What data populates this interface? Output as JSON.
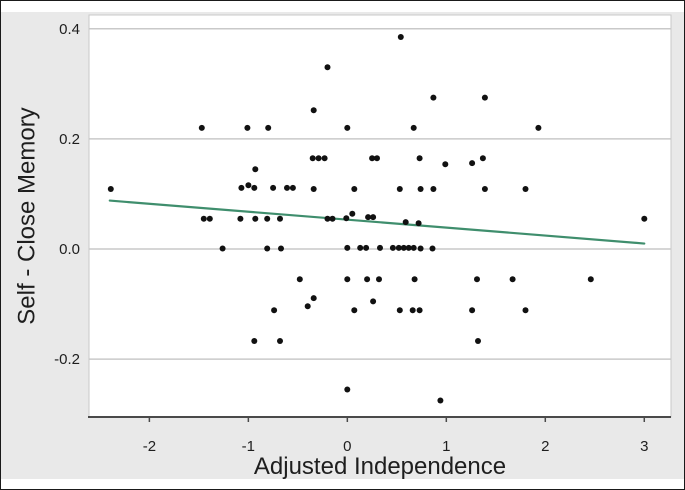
{
  "chart_data": {
    "type": "scatter",
    "title": "",
    "xlabel": "Adjusted Independence",
    "ylabel": "Self - Close Memory",
    "xlim": [
      -2.61,
      3.27
    ],
    "ylim": [
      -0.305,
      0.425
    ],
    "xticks": [
      -2,
      -1,
      0,
      1,
      2,
      3
    ],
    "xtick_labels": [
      "-2",
      "-1",
      "0",
      "1",
      "2",
      "3"
    ],
    "yticks": [
      0.4,
      0.2,
      0,
      -0.2
    ],
    "ytick_labels": [
      "0.4",
      "0.2",
      "0.0",
      "-0.2"
    ],
    "grid": "horizontal-only",
    "legend": "none",
    "marker": "filled-black-dot",
    "points": [
      [
        0.54,
        0.385
      ],
      [
        -0.2,
        0.33
      ],
      [
        0.87,
        0.275
      ],
      [
        1.39,
        0.275
      ],
      [
        -0.34,
        0.252
      ],
      [
        -1.47,
        0.22
      ],
      [
        -1.01,
        0.22
      ],
      [
        -0.8,
        0.22
      ],
      [
        0.0,
        0.22
      ],
      [
        0.67,
        0.22
      ],
      [
        1.93,
        0.22
      ],
      [
        -0.35,
        0.165
      ],
      [
        -0.29,
        0.165
      ],
      [
        -0.23,
        0.165
      ],
      [
        0.25,
        0.165
      ],
      [
        0.3,
        0.165
      ],
      [
        0.73,
        0.165
      ],
      [
        1.37,
        0.165
      ],
      [
        0.99,
        0.154
      ],
      [
        1.26,
        0.156
      ],
      [
        -0.93,
        0.145
      ],
      [
        -2.39,
        0.109
      ],
      [
        -1.07,
        0.111
      ],
      [
        -1.0,
        0.116
      ],
      [
        -0.94,
        0.111
      ],
      [
        -0.75,
        0.111
      ],
      [
        -0.61,
        0.111
      ],
      [
        -0.55,
        0.111
      ],
      [
        -0.34,
        0.109
      ],
      [
        0.07,
        0.109
      ],
      [
        0.53,
        0.109
      ],
      [
        0.74,
        0.109
      ],
      [
        0.87,
        0.109
      ],
      [
        1.39,
        0.109
      ],
      [
        1.8,
        0.109
      ],
      [
        -1.45,
        0.055
      ],
      [
        -1.39,
        0.055
      ],
      [
        -1.08,
        0.055
      ],
      [
        -0.93,
        0.055
      ],
      [
        -0.81,
        0.055
      ],
      [
        -0.68,
        0.055
      ],
      [
        -0.2,
        0.055
      ],
      [
        -0.15,
        0.055
      ],
      [
        -0.01,
        0.056
      ],
      [
        0.05,
        0.064
      ],
      [
        0.21,
        0.058
      ],
      [
        0.26,
        0.058
      ],
      [
        0.59,
        0.049
      ],
      [
        0.72,
        0.047
      ],
      [
        3.0,
        0.055
      ],
      [
        -1.26,
        0.001
      ],
      [
        -0.81,
        0.001
      ],
      [
        -0.67,
        0.001
      ],
      [
        0.0,
        0.002
      ],
      [
        0.13,
        0.002
      ],
      [
        0.19,
        0.002
      ],
      [
        0.33,
        0.002
      ],
      [
        0.46,
        0.002
      ],
      [
        0.52,
        0.002
      ],
      [
        0.57,
        0.002
      ],
      [
        0.62,
        0.002
      ],
      [
        0.67,
        0.002
      ],
      [
        0.74,
        0.001
      ],
      [
        0.86,
        0.001
      ],
      [
        -0.48,
        -0.055
      ],
      [
        0.0,
        -0.055
      ],
      [
        0.2,
        -0.055
      ],
      [
        0.32,
        -0.055
      ],
      [
        0.68,
        -0.055
      ],
      [
        1.31,
        -0.055
      ],
      [
        1.67,
        -0.055
      ],
      [
        2.46,
        -0.055
      ],
      [
        -0.34,
        -0.089
      ],
      [
        -0.4,
        -0.104
      ],
      [
        0.26,
        -0.095
      ],
      [
        -0.74,
        -0.111
      ],
      [
        0.07,
        -0.111
      ],
      [
        0.53,
        -0.111
      ],
      [
        0.66,
        -0.111
      ],
      [
        0.73,
        -0.111
      ],
      [
        1.26,
        -0.111
      ],
      [
        1.8,
        -0.111
      ],
      [
        -0.94,
        -0.167
      ],
      [
        -0.68,
        -0.167
      ],
      [
        1.32,
        -0.167
      ],
      [
        0.0,
        -0.255
      ],
      [
        0.94,
        -0.275
      ]
    ],
    "trend_line": {
      "x": [
        -2.4,
        3.0
      ],
      "y": [
        0.088,
        0.01
      ],
      "color": "#3f8e6d"
    },
    "colors": {
      "figure_bg": "#ffffff",
      "canvas_bg": "#e9e9e9",
      "plot_bg": "#ffffff",
      "grid": "#c9c9c9",
      "axis": "#4a4a4a",
      "point": "#111111",
      "text": "#1e1e1e",
      "border": "#1a1a1a"
    }
  }
}
